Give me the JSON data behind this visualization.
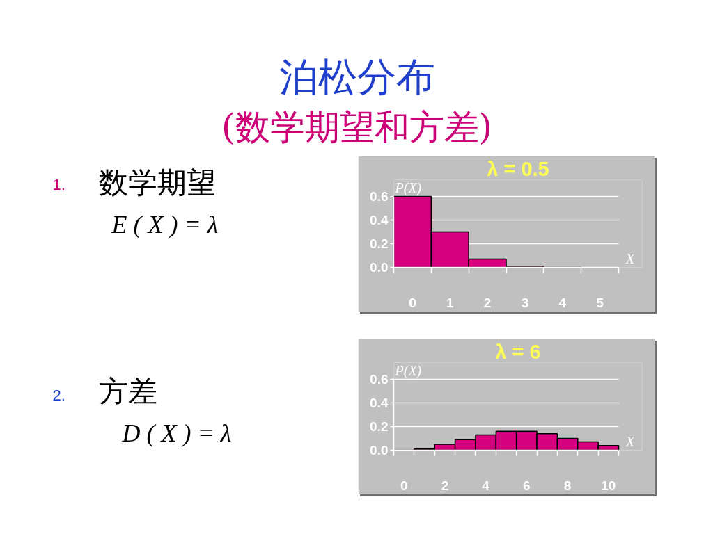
{
  "chart_data": [
    {
      "type": "other",
      "title": "泊松分布",
      "subtitle": "(数学期望和方差)",
      "annotations": [
        "1.",
        "数学期望",
        "E ( X ) = λ",
        "2.",
        "方差",
        "D ( X ) = λ"
      ]
    },
    {
      "type": "bar",
      "title": "λ = 0.5",
      "xlabel": "X",
      "ylabel": "P(X)",
      "x": [
        0,
        1,
        2,
        3,
        4
      ],
      "values": [
        0.6,
        0.3,
        0.07,
        0.01,
        0.0
      ],
      "colors": [
        "#d6007f",
        "#d6007f",
        "#d6007f",
        "#d6007f",
        "#000000"
      ],
      "xlim": [
        -0.5,
        5.5
      ],
      "xticks": [
        {
          "value": -0.5,
          "label": null
        },
        0,
        {
          "value": 0.5,
          "label": null
        },
        1,
        {
          "value": 1.5,
          "label": null
        },
        2,
        {
          "value": 2.5,
          "label": null
        },
        3,
        {
          "value": 3.5,
          "label": null
        },
        4,
        {
          "value": 4.5,
          "label": null
        },
        5,
        {
          "value": 5.5,
          "label": null
        }
      ],
      "ylim": [
        0,
        0.6
      ],
      "yticks": [
        {
          "value": 0,
          "label": "0.0"
        },
        0.2,
        0.4,
        0.6
      ],
      "grid": "y"
    },
    {
      "type": "bar",
      "title": "λ = 6",
      "xlabel": "X",
      "ylabel": "P(X)",
      "x": [
        0,
        1,
        2,
        3,
        4,
        5,
        6,
        7,
        8,
        9,
        10
      ],
      "values": [
        0.0,
        0.01,
        0.05,
        0.09,
        0.13,
        0.16,
        0.16,
        0.14,
        0.1,
        0.07,
        0.04
      ],
      "colors": [
        "#000000",
        "#d6007f",
        "#d6007f",
        "#d6007f",
        "#d6007f",
        "#d6007f",
        "#d6007f",
        "#d6007f",
        "#d6007f",
        "#d6007f",
        "#d6007f"
      ],
      "xlim": [
        -0.5,
        10.5
      ],
      "xticks": [
        {
          "value": -0.5,
          "label": null
        },
        0,
        {
          "value": 0.5,
          "label": null
        },
        {
          "value": 1.5,
          "label": null
        },
        2,
        {
          "value": 2.5,
          "label": null
        },
        {
          "value": 3.5,
          "label": null
        },
        4,
        {
          "value": 4.5,
          "label": null
        },
        {
          "value": 5.5,
          "label": null
        },
        6,
        {
          "value": 6.5,
          "label": null
        },
        {
          "value": 7.5,
          "label": null
        },
        8,
        {
          "value": 8.5,
          "label": null
        },
        {
          "value": 9.5,
          "label": null
        },
        10,
        {
          "value": 10.5,
          "label": null
        }
      ],
      "ylim": [
        0,
        0.6
      ],
      "yticks": [
        {
          "value": 0,
          "label": "0.0"
        },
        0.2,
        0.4,
        0.6
      ],
      "grid": "y"
    }
  ]
}
